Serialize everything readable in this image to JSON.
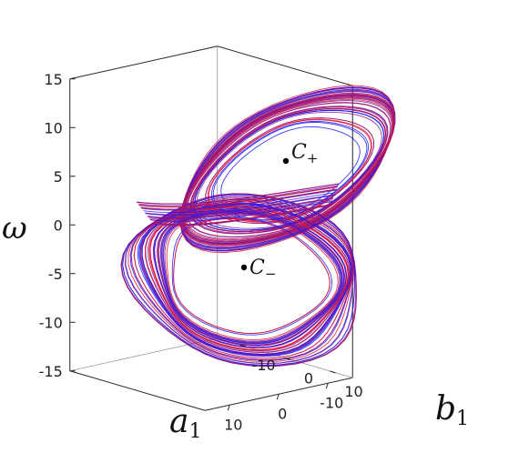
{
  "chart_data": {
    "type": "line",
    "subtype": "3d-trajectory",
    "title": "",
    "axes": {
      "x": {
        "label_main": "a",
        "label_sub": "1",
        "ticks": [
          10,
          0,
          -10
        ],
        "range": [
          -15,
          15
        ]
      },
      "y": {
        "label_main": "b",
        "label_sub": "1",
        "ticks": [
          -10,
          0,
          10
        ],
        "range": [
          -15,
          15
        ]
      },
      "z": {
        "label_main": "ω",
        "ticks": [
          15,
          10,
          5,
          0,
          -5,
          -10,
          -15
        ],
        "range": [
          -15,
          15
        ]
      }
    },
    "grid": false,
    "legend": "none",
    "series_colors": [
      "#1a1aff",
      "#e01030",
      "#8a1a8a"
    ],
    "fixed_points": [
      {
        "label_main": "C",
        "label_sub": "+",
        "a1": 0,
        "b1": 0,
        "omega": 7
      },
      {
        "label_main": "C",
        "label_sub": "−",
        "a1": 0,
        "b1": 0,
        "omega": -4
      }
    ]
  }
}
